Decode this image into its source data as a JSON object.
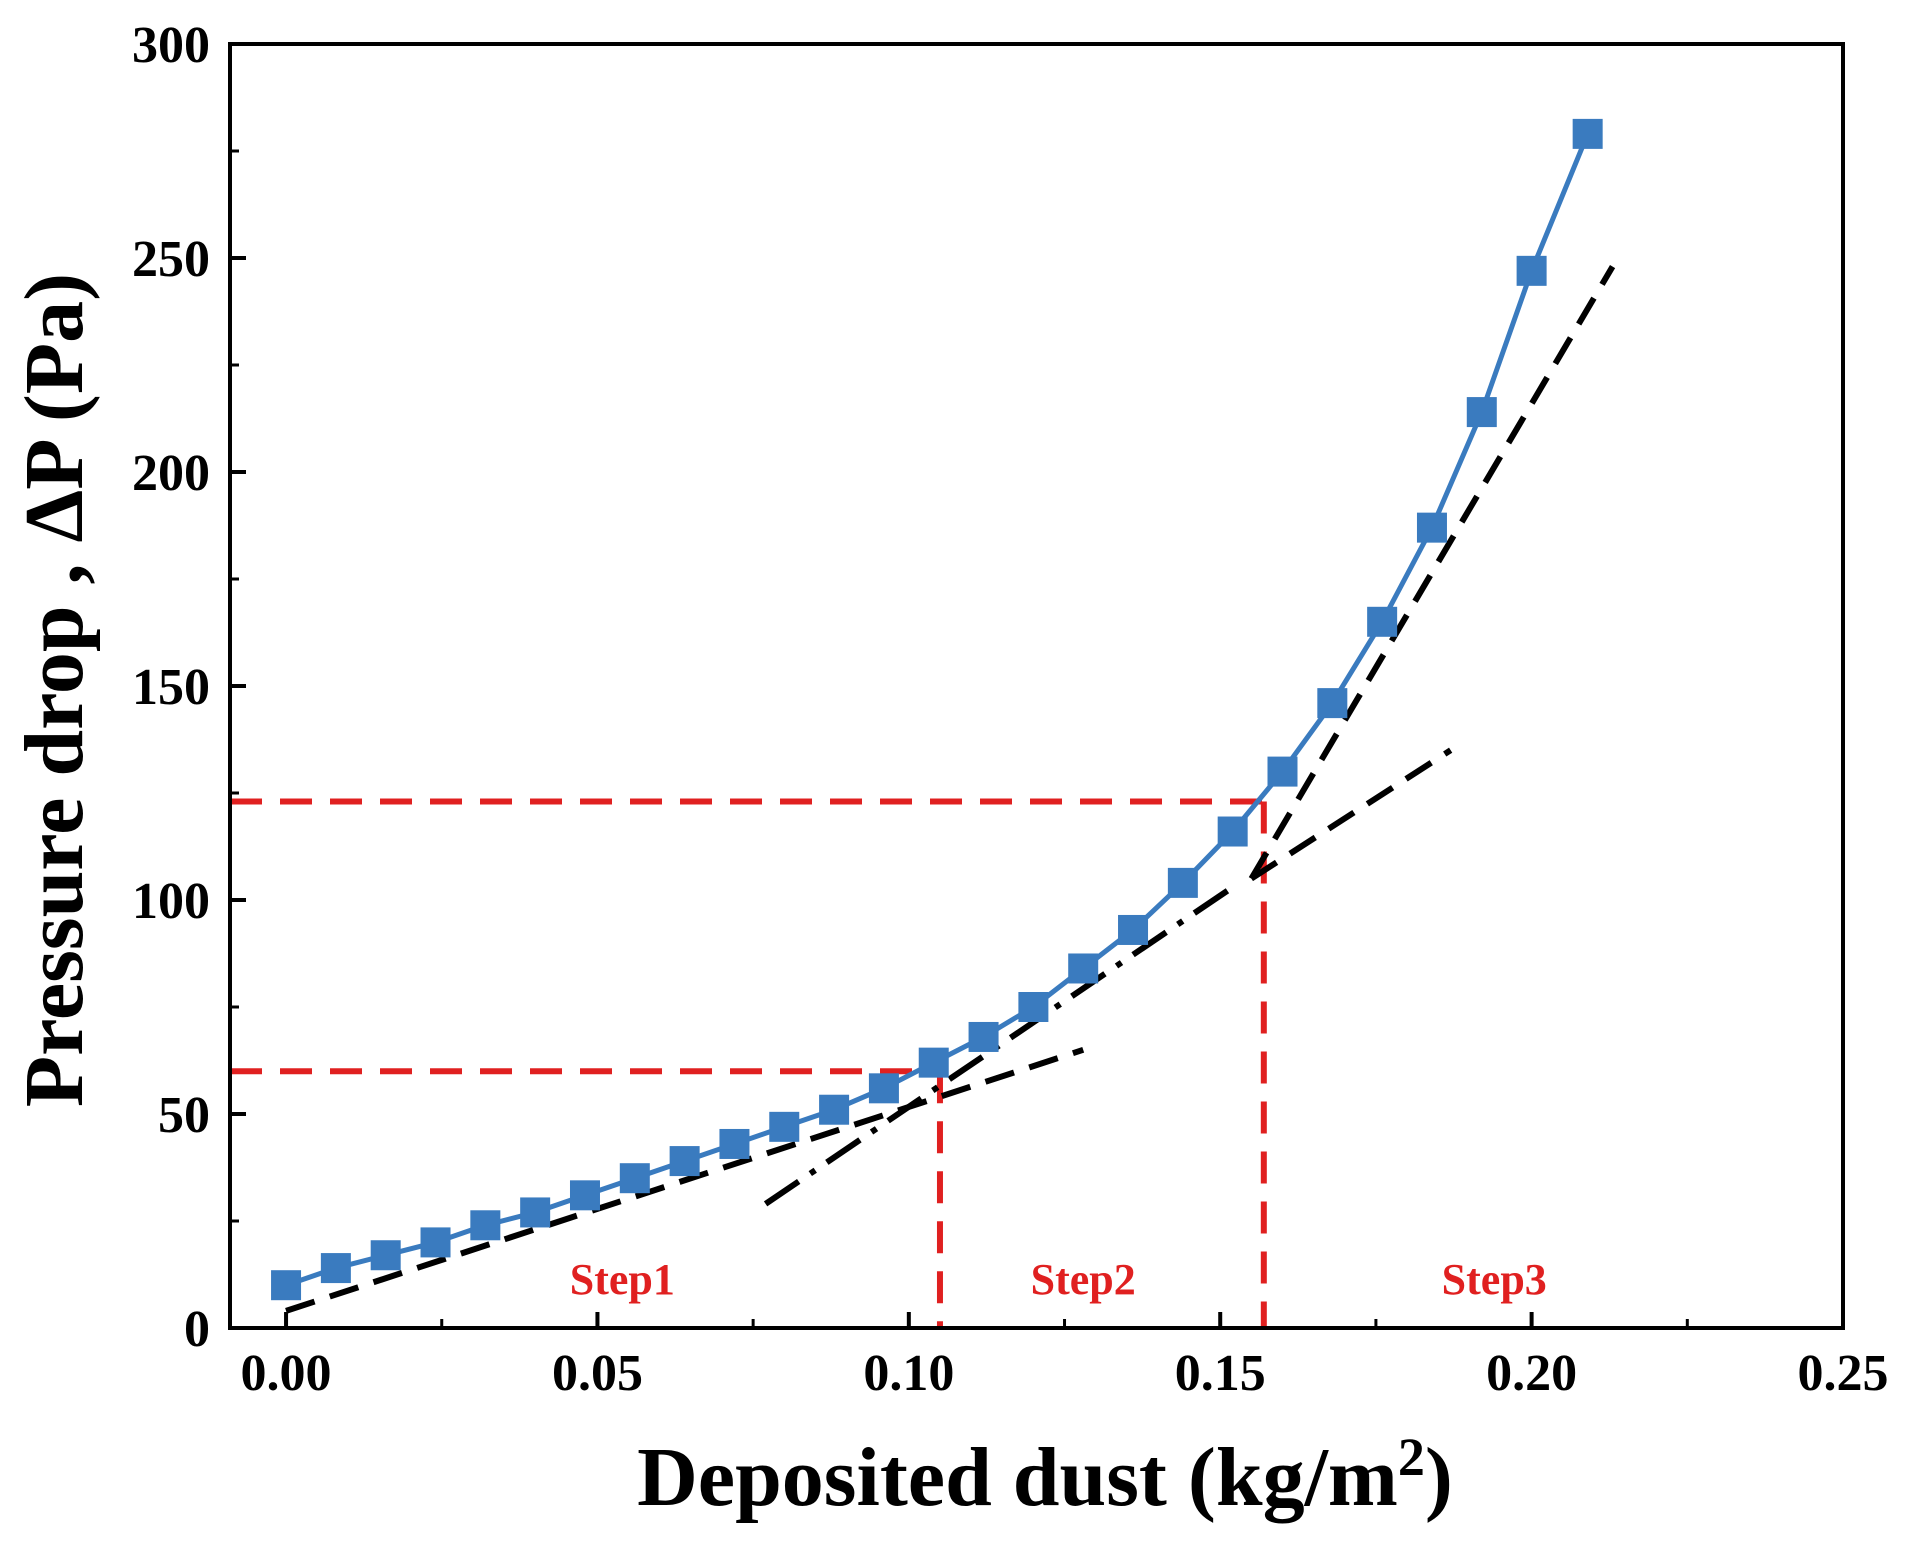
{
  "chart_data": {
    "type": "line",
    "xlabel": "Deposited dust (kg/m",
    "xlabel_sup": "2",
    "xlabel_close": ")",
    "ylabel": "Pressure drop , ΔP (Pa)",
    "xlim": [
      -0.009,
      0.25
    ],
    "ylim": [
      0,
      300
    ],
    "xticks": [
      0.0,
      0.05,
      0.1,
      0.15,
      0.2,
      0.25
    ],
    "xtick_labels": [
      "0.00",
      "0.05",
      "0.10",
      "0.15",
      "0.20",
      "0.25"
    ],
    "yticks": [
      0,
      50,
      100,
      150,
      200,
      250,
      300
    ],
    "ytick_labels": [
      "0",
      "50",
      "100",
      "150",
      "200",
      "250",
      "300"
    ],
    "grid": false,
    "colors": {
      "series": "#3a7bbf",
      "fit": "#000000",
      "guide": "#e02020",
      "step": "#e02020"
    },
    "series": [
      {
        "name": "Pressure drop",
        "marker": "square",
        "x": [
          0.0,
          0.008,
          0.016,
          0.024,
          0.032,
          0.04,
          0.048,
          0.056,
          0.064,
          0.072,
          0.08,
          0.088,
          0.096,
          0.104,
          0.112,
          0.12,
          0.128,
          0.136,
          0.144,
          0.152,
          0.16,
          0.168,
          0.176,
          0.184,
          0.192,
          0.2,
          0.209
        ],
        "y": [
          10,
          14,
          17,
          20,
          24,
          27,
          31,
          35,
          39,
          43,
          47,
          51,
          56,
          62,
          68,
          75,
          84,
          93,
          104,
          116,
          130,
          146,
          165,
          187,
          214,
          247,
          279
        ]
      }
    ],
    "fit_lines": [
      {
        "name": "Step1 fit",
        "style": "dash",
        "points": [
          [
            0.0,
            4
          ],
          [
            0.128,
            65
          ]
        ]
      },
      {
        "name": "Step2 fit",
        "style": "dash-dot",
        "points": [
          [
            0.077,
            29
          ],
          [
            0.152,
            103
          ]
        ]
      },
      {
        "name": "Step2 fit extension",
        "style": "dash",
        "points": [
          [
            0.155,
            105
          ],
          [
            0.187,
            135
          ]
        ]
      },
      {
        "name": "Step3 fit",
        "style": "dash",
        "points": [
          [
            0.155,
            105
          ],
          [
            0.213,
            248
          ]
        ]
      }
    ],
    "guide_lines": [
      {
        "name": "Step1 limit",
        "x": 0.105,
        "y": 60
      },
      {
        "name": "Step2 limit",
        "x": 0.157,
        "y": 123
      }
    ],
    "annotations": [
      {
        "text": "Step1",
        "x": 0.054,
        "y": 8
      },
      {
        "text": "Step2",
        "x": 0.128,
        "y": 8
      },
      {
        "text": "Step3",
        "x": 0.194,
        "y": 8
      }
    ]
  }
}
